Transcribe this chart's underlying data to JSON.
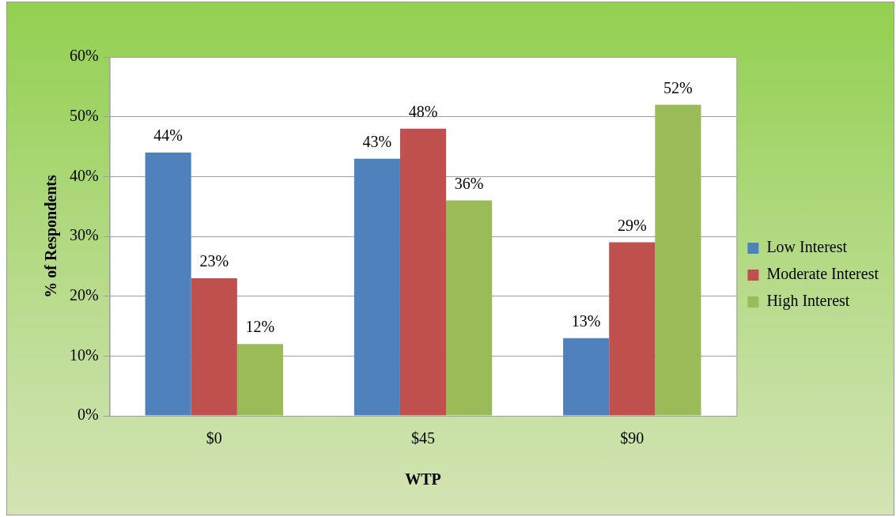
{
  "chart_data": {
    "type": "bar",
    "xlabel": "WTP",
    "ylabel": "% of Respondents",
    "categories": [
      "$0",
      "$45",
      "$90"
    ],
    "series": [
      {
        "name": "Low Interest",
        "color": "#4f81bd",
        "values": [
          44,
          43,
          13
        ],
        "value_labels": [
          "44%",
          "43%",
          "13%"
        ]
      },
      {
        "name": "Moderate Interest",
        "color": "#c0504d",
        "values": [
          23,
          48,
          29
        ],
        "value_labels": [
          "23%",
          "48%",
          "29%"
        ]
      },
      {
        "name": "High Interest",
        "color": "#9bbb59",
        "values": [
          12,
          36,
          52
        ],
        "value_labels": [
          "12%",
          "36%",
          "52%"
        ]
      }
    ],
    "ylim": [
      0,
      60
    ],
    "yticks": [
      {
        "value": 0,
        "label": "0%"
      },
      {
        "value": 10,
        "label": "10%"
      },
      {
        "value": 20,
        "label": "20%"
      },
      {
        "value": 30,
        "label": "30%"
      },
      {
        "value": 40,
        "label": "40%"
      },
      {
        "value": 50,
        "label": "50%"
      },
      {
        "value": 60,
        "label": "60%"
      }
    ],
    "grid": "y",
    "legend": "right"
  }
}
